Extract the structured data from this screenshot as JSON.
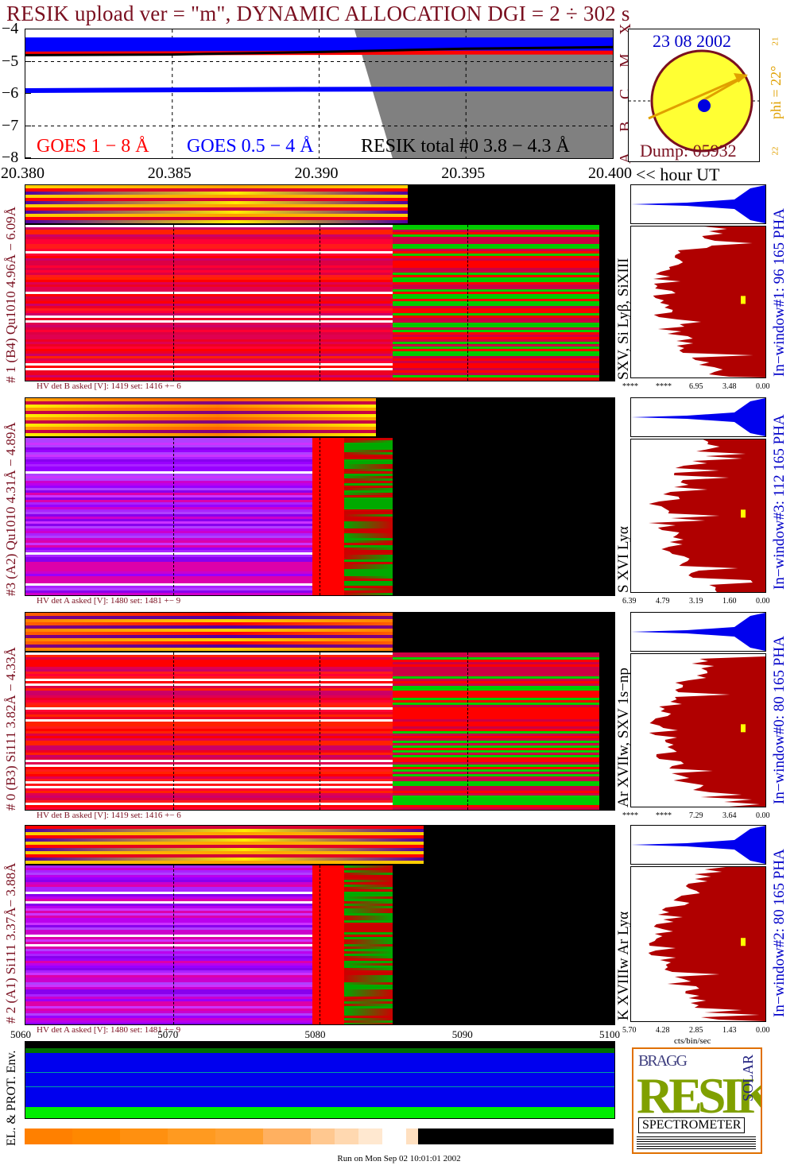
{
  "header": {
    "title": "RESIK upload ver = \"m\", DYNAMIC ALLOCATION  DGI =   2 ÷ 302 s"
  },
  "goes_panel": {
    "y_ticks": [
      "−4",
      "−5",
      "−6",
      "−7",
      "−8"
    ],
    "x_ticks": [
      "20.380",
      "20.385",
      "20.390",
      "20.395",
      "20.400"
    ],
    "x_unit": "<< hour UT",
    "class_letters": [
      "A",
      "B",
      "C",
      "M",
      "X"
    ],
    "legend_goes_long": "GOES 1 − 8 Å",
    "legend_goes_short": "GOES 0.5 − 4 Å",
    "legend_resik": "RESIK total #0  3.8 − 4.3 Å",
    "colors": {
      "goes_long": "#ff0000",
      "goes_short": "#0000ff",
      "resik": "#000000",
      "shade": "#808080"
    }
  },
  "sun_panel": {
    "date": "23 08 2002",
    "dump": "Dump: 05932",
    "phi": "phi = 22°",
    "tick_top": "21",
    "tick_bottom": "22"
  },
  "detectors": [
    {
      "side_label": "# 1 (B4) Qu1010 4.96Å − 6.09Å",
      "lines": "SXV, Si Lyβ, SiXIII",
      "window": "In−window#1:  96 165  PHA",
      "hv": "HV det B asked [V]:  1419 set:  1416 +−    6",
      "pha_ticks": [
        "****",
        "****",
        "6.95",
        "3.48",
        "0.00"
      ],
      "body": "red"
    },
    {
      "side_label": "#3 (A2) Qu1010  4.31Å − 4.89Å",
      "lines": "S XVI Lyα",
      "window": "In−window#3:  112 165  PHA",
      "hv": "HV det A asked [V]:  1480 set:  1481 +−    9",
      "pha_ticks": [
        "6.39",
        "4.79",
        "3.19",
        "1.60",
        "0.00"
      ],
      "body": "purple"
    },
    {
      "side_label": "# 0 (B3) Si111  3.82Å − 4.33Å",
      "lines": "Ar XVIIw, SXV 1s−np",
      "window": "In−window#0:   80 165  PHA",
      "hv": "HV det B asked [V]:  1419 set:  1416 +−    6",
      "pha_ticks": [
        "****",
        "****",
        "7.29",
        "3.64",
        "0.00"
      ],
      "body": "red"
    },
    {
      "side_label": "# 2 (A1) Si111  3.37Å− 3.88Å",
      "lines": "K XVIIIw  Ar Lyα",
      "window": "In−window#2:   80 165  PHA",
      "hv": "HV det A asked [V]:  1480 set:  1481 +−    9",
      "pha_ticks": [
        "5.70",
        "4.28",
        "2.85",
        "1.43",
        "0.00"
      ],
      "body": "purple"
    }
  ],
  "bottom_axis": {
    "ticks": [
      "5060",
      "5070",
      "5080",
      "5090",
      "5100"
    ],
    "pha_unit": "cts/bin/sec"
  },
  "env_panel": {
    "label": "EL. & PROT. Env."
  },
  "logo": {
    "letters": "RESIK",
    "bragg": "BRAGG",
    "solar": "SOLAR",
    "caption": "SPECTROMETER"
  },
  "footer": "Run on Mon Sep 02 10:01:01 2002",
  "chart_data": [
    {
      "type": "line",
      "title": "",
      "x": [
        20.38,
        20.385,
        20.39,
        20.395,
        20.4
      ],
      "xlabel": "<< hour UT",
      "ylim": [
        -8,
        -4
      ],
      "xlim": [
        20.38,
        20.4
      ],
      "series": [
        {
          "name": "GOES 1 − 8 Å",
          "values": [
            -4.75,
            -4.74,
            -4.73,
            -4.72,
            -4.72
          ]
        },
        {
          "name": "GOES 0.5 − 4 Å",
          "values": [
            -5.9,
            -5.88,
            -5.86,
            -5.85,
            -5.85
          ]
        },
        {
          "name": "RESIK total #0  3.8 − 4.3 Å",
          "values": [
            -4.8,
            -4.78,
            -4.7,
            -4.6,
            -4.55
          ]
        }
      ]
    },
    {
      "type": "heatmap",
      "x": [
        5060,
        5070,
        5080,
        5090,
        5100
      ],
      "xlim": [
        5060,
        5100
      ]
    }
  ]
}
